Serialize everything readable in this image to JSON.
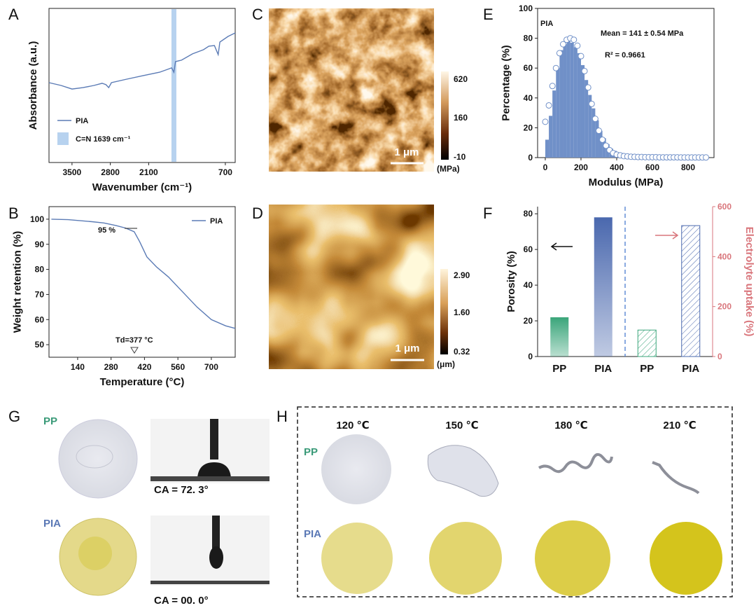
{
  "chart_data": [
    {
      "type": "line",
      "panel": "A",
      "xlabel": "Wavenumber (cm⁻¹)",
      "ylabel": "Absorbance (a.u.)",
      "x": [
        3920,
        3700,
        3500,
        3300,
        3100,
        2950,
        2880,
        2830,
        2780,
        2500,
        2200,
        1900,
        1750,
        1680,
        1640,
        1610,
        1500,
        1300,
        1100,
        1000,
        900,
        830,
        800,
        650,
        520
      ],
      "series": [
        {
          "name": "PIA",
          "color": "#5b7bb5",
          "values": [
            0.518,
            0.5,
            0.477,
            0.486,
            0.5,
            0.514,
            0.505,
            0.486,
            0.518,
            0.541,
            0.564,
            0.586,
            0.605,
            0.614,
            0.586,
            0.655,
            0.664,
            0.705,
            0.732,
            0.755,
            0.759,
            0.7,
            0.782,
            0.818,
            0.841
          ]
        }
      ],
      "band": {
        "value": 1639,
        "label": "C=N  1639 cm⁻¹",
        "color": "#b7d2ef"
      },
      "xlim": [
        3920,
        520
      ],
      "xticks": [
        3500,
        2800,
        2100,
        700
      ],
      "ylim": [
        0,
        1
      ],
      "legend": "lower left"
    },
    {
      "type": "line",
      "panel": "B",
      "xlabel": "Temperature (°C)",
      "ylabel": "Weight retention (%)",
      "x": [
        30,
        100,
        200,
        250,
        300,
        340,
        377,
        400,
        430,
        470,
        520,
        580,
        640,
        700,
        760,
        800
      ],
      "series": [
        {
          "name": "PIA",
          "color": "#5b7bb5",
          "values": [
            100,
            99.8,
            99,
            98.5,
            97.5,
            96.5,
            95,
            91,
            85,
            81,
            77,
            71,
            65,
            60,
            57.5,
            56.5
          ]
        }
      ],
      "annotations": [
        "95 %",
        "Td=377 °C"
      ],
      "xlim": [
        20,
        800
      ],
      "xticks": [
        140,
        280,
        420,
        560,
        700
      ],
      "ylim": [
        45,
        105
      ],
      "yticks": [
        50,
        60,
        70,
        80,
        90,
        100
      ],
      "legend": "upper right"
    },
    {
      "type": "histogram",
      "panel": "E",
      "xlabel": "Modulus (MPa)",
      "ylabel": "Percentage (%)",
      "color": "#7090c8",
      "bins": [
        0,
        20,
        40,
        60,
        80,
        100,
        120,
        140,
        160,
        180,
        200,
        220,
        240,
        260,
        280,
        300,
        320,
        340,
        360,
        380,
        400,
        420,
        440,
        460,
        480,
        500,
        520,
        540,
        560,
        580,
        600,
        620,
        640,
        660,
        680,
        700,
        720,
        740,
        760,
        780,
        800,
        820,
        840,
        860,
        880,
        900
      ],
      "values": [
        12,
        28,
        45,
        60,
        72,
        76,
        79,
        77,
        74,
        70,
        62,
        52,
        42,
        33,
        25,
        18,
        13,
        9,
        6,
        4.5,
        3.5,
        3,
        2.5,
        2,
        1.8,
        1.5,
        1.3,
        1.1,
        1,
        0.9,
        0.8,
        0.7,
        0.6,
        0.6,
        0.5,
        0.5,
        0.4,
        0.4,
        0.3,
        0.3,
        0.3,
        0.2,
        0.2,
        0.2,
        0.2
      ],
      "fit": {
        "x": [
          0,
          20,
          40,
          60,
          80,
          100,
          120,
          140,
          160,
          180,
          200,
          220,
          240,
          260,
          280,
          300,
          320,
          340,
          360,
          380,
          400,
          420,
          440,
          460,
          480,
          500,
          520,
          540,
          560,
          580,
          600,
          620,
          640,
          660,
          680,
          700,
          720,
          740,
          760,
          780,
          800,
          820,
          840,
          860,
          880,
          900
        ],
        "values": [
          24,
          35,
          48,
          60,
          70,
          76,
          79,
          80,
          79,
          75,
          68,
          58,
          47,
          36,
          26,
          18,
          12,
          8,
          5,
          3,
          2,
          1.5,
          1,
          0.8,
          0.6,
          0.5,
          0.4,
          0.4,
          0.3,
          0.3,
          0.3,
          0.3,
          0.2,
          0.2,
          0.2,
          0.2,
          0.2,
          0.2,
          0.1,
          0.1,
          0.1,
          0.1,
          0.1,
          0.1,
          0.1,
          0.1
        ]
      },
      "annotations": [
        "PIA",
        "Mean = 141 ± 0.54 MPa",
        "R² = 0.9661"
      ],
      "xlim": [
        -43,
        945
      ],
      "xticks": [
        0,
        200,
        400,
        600,
        800
      ],
      "ylim": [
        0,
        100
      ],
      "yticks": [
        0,
        20,
        40,
        60,
        80,
        100
      ]
    },
    {
      "type": "bar",
      "panel": "F",
      "ylabel": "Porosity (%)",
      "y2label": "Electrolyte uptake (%)",
      "y2color": "#d9767c",
      "categories": [
        "PP",
        "PIA",
        "PP",
        "PIA"
      ],
      "colors": [
        "#3aa57a",
        "#4a68ae",
        "#3aa57a",
        "#4a68ae"
      ],
      "series": [
        {
          "fill": "gradient",
          "values": [
            22,
            78,
            null,
            null
          ]
        },
        {
          "fill": "hatch",
          "axis": "y2",
          "values": [
            null,
            null,
            106,
            524
          ]
        }
      ],
      "ylim": [
        0,
        84
      ],
      "yticks": [
        0,
        20,
        40,
        60,
        80
      ],
      "y2lim": [
        0,
        600
      ],
      "y2ticks": [
        0,
        200,
        400,
        600
      ]
    }
  ],
  "afm_images": [
    {
      "panel": "C",
      "colorbar_ticks": [
        "620",
        "160",
        "-10"
      ],
      "unit": "(MPa)",
      "scale_bar": "1 μm"
    },
    {
      "panel": "D",
      "colorbar_ticks": [
        "2.90",
        "1.60",
        "0.32"
      ],
      "unit": "(μm)",
      "scale_bar": "1 μm"
    }
  ],
  "wettability": {
    "panel": "G",
    "rows": [
      {
        "label": "PP",
        "contact_angle": "CA = 72. 3°"
      },
      {
        "label": "PIA",
        "contact_angle": "CA = 00. 0°"
      }
    ]
  },
  "thermal_stability": {
    "panel": "H",
    "temperatures": [
      "120 ℃",
      "150 ℃",
      "180 ℃",
      "210 ℃"
    ],
    "rows": [
      "PP",
      "PIA"
    ]
  }
}
